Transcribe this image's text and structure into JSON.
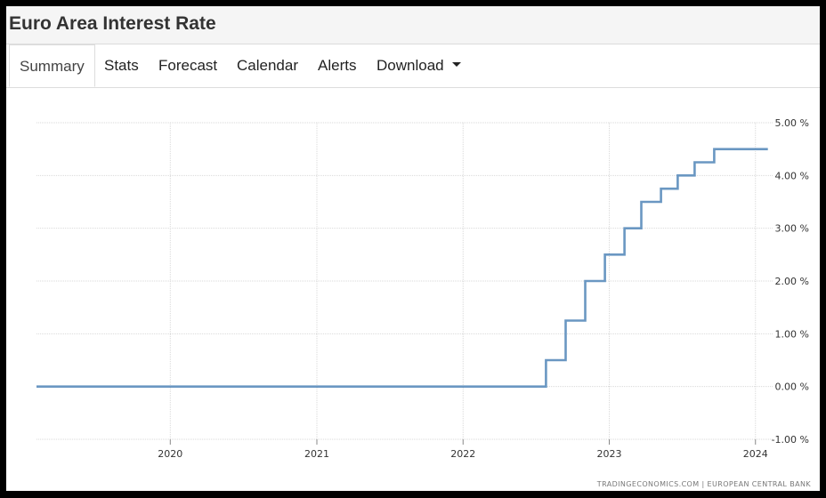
{
  "header": {
    "title": "Euro Area Interest Rate"
  },
  "tabs": [
    {
      "label": "Summary",
      "active": true
    },
    {
      "label": "Stats"
    },
    {
      "label": "Forecast"
    },
    {
      "label": "Calendar"
    },
    {
      "label": "Alerts"
    },
    {
      "label": "Download",
      "has_dropdown": true
    }
  ],
  "chart_data": {
    "type": "line",
    "step": true,
    "xlim": [
      "2019-02-01",
      "2024-02-15"
    ],
    "ylim": [
      -1,
      5
    ],
    "y_ticks": [
      "-1.00 %",
      "0.00 %",
      "1.00 %",
      "2.00 %",
      "3.00 %",
      "4.00 %",
      "5.00 %"
    ],
    "y_tick_values": [
      -1,
      0,
      1,
      2,
      3,
      4,
      5
    ],
    "y_axis_position": "right",
    "x_ticks": [
      "2020",
      "2021",
      "2022",
      "2023",
      "2024"
    ],
    "x_tick_values": [
      "2020-01-01",
      "2021-01-01",
      "2022-01-01",
      "2023-01-01",
      "2024-01-01"
    ],
    "grid": true,
    "line_color": "#6a97c2",
    "series": [
      {
        "points": [
          [
            "2019-02-01",
            0
          ],
          [
            "2022-07-27",
            0.5
          ],
          [
            "2022-09-14",
            1.25
          ],
          [
            "2022-11-02",
            2.0
          ],
          [
            "2022-12-21",
            2.5
          ],
          [
            "2023-02-08",
            3.0
          ],
          [
            "2023-03-22",
            3.5
          ],
          [
            "2023-05-10",
            3.75
          ],
          [
            "2023-06-21",
            4.0
          ],
          [
            "2023-08-02",
            4.25
          ],
          [
            "2023-09-20",
            4.5
          ],
          [
            "2024-02-01",
            4.5
          ]
        ]
      }
    ],
    "source": "TRADINGECONOMICS.COM  |  EUROPEAN CENTRAL BANK"
  }
}
